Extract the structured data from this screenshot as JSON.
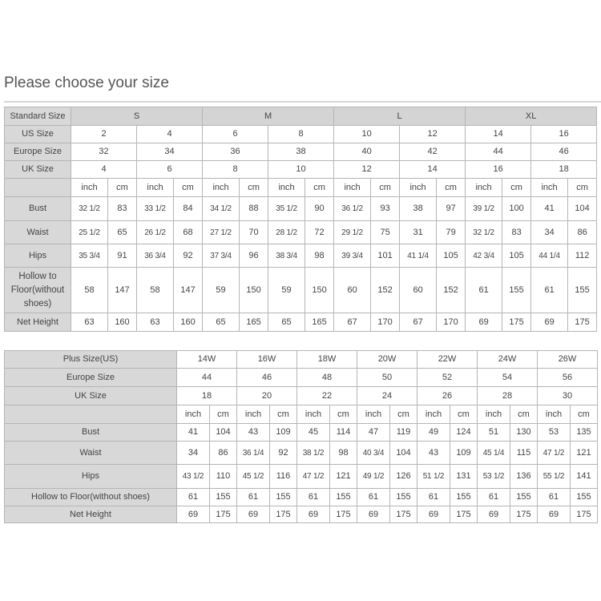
{
  "title": "Please choose your size",
  "standard_table": {
    "label_standard": "Standard Size",
    "standard_sizes": [
      "S",
      "M",
      "L",
      "XL"
    ],
    "label_us": "US Size",
    "us_sizes": [
      "2",
      "4",
      "6",
      "8",
      "10",
      "12",
      "14",
      "16"
    ],
    "label_europe": "Europe Size",
    "europe_sizes": [
      "32",
      "34",
      "36",
      "38",
      "40",
      "42",
      "44",
      "46"
    ],
    "label_uk": "UK Size",
    "uk_sizes": [
      "4",
      "6",
      "8",
      "10",
      "12",
      "14",
      "16",
      "18"
    ],
    "units": [
      "inch",
      "cm"
    ],
    "rows": [
      {
        "label": "Bust",
        "values": [
          "32 1/2",
          "83",
          "33 1/2",
          "84",
          "34 1/2",
          "88",
          "35 1/2",
          "90",
          "36 1/2",
          "93",
          "38",
          "97",
          "39 1/2",
          "100",
          "41",
          "104"
        ]
      },
      {
        "label": "Waist",
        "values": [
          "25 1/2",
          "65",
          "26 1/2",
          "68",
          "27 1/2",
          "70",
          "28 1/2",
          "72",
          "29 1/2",
          "75",
          "31",
          "79",
          "32 1/2",
          "83",
          "34",
          "86"
        ]
      },
      {
        "label": "Hips",
        "values": [
          "35 3/4",
          "91",
          "36 3/4",
          "92",
          "37 3/4",
          "96",
          "38 3/4",
          "98",
          "39 3/4",
          "101",
          "41 1/4",
          "105",
          "42 3/4",
          "105",
          "44 1/4",
          "112"
        ]
      },
      {
        "label": "Hollow to Floor(without shoes)",
        "values": [
          "58",
          "147",
          "58",
          "147",
          "59",
          "150",
          "59",
          "150",
          "60",
          "152",
          "60",
          "152",
          "61",
          "155",
          "61",
          "155"
        ]
      },
      {
        "label": "Net Height",
        "values": [
          "63",
          "160",
          "63",
          "160",
          "65",
          "165",
          "65",
          "165",
          "67",
          "170",
          "67",
          "170",
          "69",
          "175",
          "69",
          "175"
        ]
      }
    ]
  },
  "plus_table": {
    "label_plus": "Plus Size(US)",
    "plus_sizes": [
      "14W",
      "16W",
      "18W",
      "20W",
      "22W",
      "24W",
      "26W"
    ],
    "label_europe": "Europe Size",
    "europe_sizes": [
      "44",
      "46",
      "48",
      "50",
      "52",
      "54",
      "56"
    ],
    "label_uk": "UK Size",
    "uk_sizes": [
      "18",
      "20",
      "22",
      "24",
      "26",
      "28",
      "30"
    ],
    "units": [
      "inch",
      "cm"
    ],
    "rows": [
      {
        "label": "Bust",
        "values": [
          "41",
          "104",
          "43",
          "109",
          "45",
          "114",
          "47",
          "119",
          "49",
          "124",
          "51",
          "130",
          "53",
          "135"
        ]
      },
      {
        "label": "Waist",
        "values": [
          "34",
          "86",
          "36 1/4",
          "92",
          "38 1/2",
          "98",
          "40 3/4",
          "104",
          "43",
          "109",
          "45 1/4",
          "115",
          "47 1/2",
          "121"
        ]
      },
      {
        "label": "Hips",
        "values": [
          "43 1/2",
          "110",
          "45 1/2",
          "116",
          "47 1/2",
          "121",
          "49 1/2",
          "126",
          "51 1/2",
          "131",
          "53 1/2",
          "136",
          "55 1/2",
          "141"
        ]
      },
      {
        "label": "Hollow to Floor(without shoes)",
        "values": [
          "61",
          "155",
          "61",
          "155",
          "61",
          "155",
          "61",
          "155",
          "61",
          "155",
          "61",
          "155",
          "61",
          "155"
        ]
      },
      {
        "label": "Net Height",
        "values": [
          "69",
          "175",
          "69",
          "175",
          "69",
          "175",
          "69",
          "175",
          "69",
          "175",
          "69",
          "175",
          "69",
          "175"
        ]
      }
    ]
  }
}
